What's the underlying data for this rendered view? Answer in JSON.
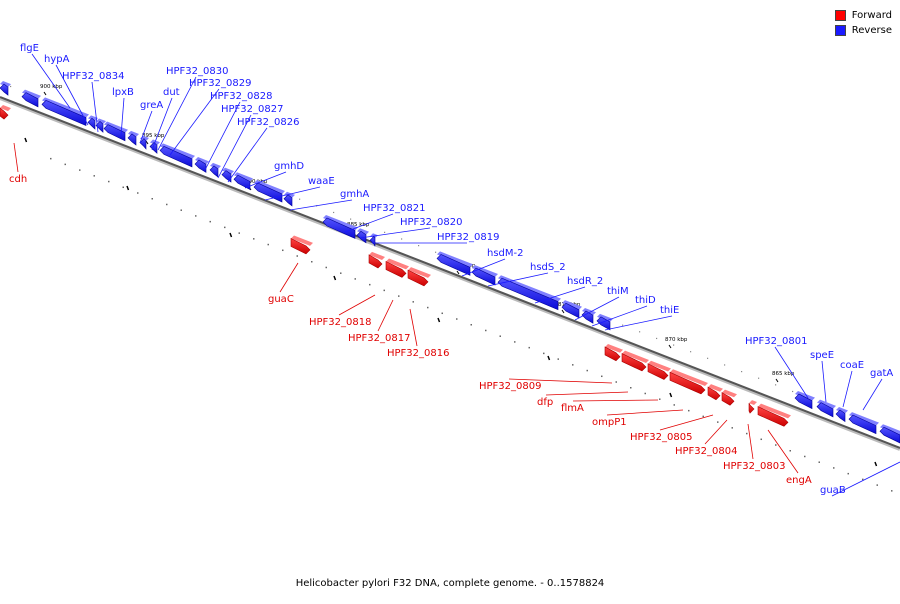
{
  "legend": {
    "forward_label": "Forward",
    "reverse_label": "Reverse",
    "forward_color": "#ff0000",
    "reverse_color": "#1a1aff"
  },
  "caption": "Helicobacter pylori F32 DNA, complete genome. - 0..1578824",
  "ticks": [
    "900 kbp",
    "895 kbp",
    "890 kbp",
    "885 kbp",
    "880 kbp",
    "875 kbp",
    "870 kbp",
    "865 kbp"
  ],
  "genes": [
    {
      "name": "flgE",
      "strand": "reverse"
    },
    {
      "name": "hypA",
      "strand": "reverse"
    },
    {
      "name": "HPF32_0834",
      "strand": "reverse"
    },
    {
      "name": "lpxB",
      "strand": "reverse"
    },
    {
      "name": "greA",
      "strand": "reverse"
    },
    {
      "name": "dut",
      "strand": "reverse"
    },
    {
      "name": "HPF32_0830",
      "strand": "reverse"
    },
    {
      "name": "HPF32_0829",
      "strand": "reverse"
    },
    {
      "name": "HPF32_0828",
      "strand": "reverse"
    },
    {
      "name": "HPF32_0827",
      "strand": "reverse"
    },
    {
      "name": "HPF32_0826",
      "strand": "reverse"
    },
    {
      "name": "gmhD",
      "strand": "reverse"
    },
    {
      "name": "waaE",
      "strand": "reverse"
    },
    {
      "name": "gmhA",
      "strand": "reverse"
    },
    {
      "name": "HPF32_0821",
      "strand": "reverse"
    },
    {
      "name": "HPF32_0820",
      "strand": "reverse"
    },
    {
      "name": "HPF32_0819",
      "strand": "reverse"
    },
    {
      "name": "hsdM-2",
      "strand": "reverse"
    },
    {
      "name": "hsdS_2",
      "strand": "reverse"
    },
    {
      "name": "hsdR_2",
      "strand": "reverse"
    },
    {
      "name": "thiM",
      "strand": "reverse"
    },
    {
      "name": "thiD",
      "strand": "reverse"
    },
    {
      "name": "thiE",
      "strand": "reverse"
    },
    {
      "name": "HPF32_0801",
      "strand": "reverse"
    },
    {
      "name": "speE",
      "strand": "reverse"
    },
    {
      "name": "coaE",
      "strand": "reverse"
    },
    {
      "name": "gatA",
      "strand": "reverse"
    },
    {
      "name": "guaB",
      "strand": "reverse"
    },
    {
      "name": "cdh",
      "strand": "forward"
    },
    {
      "name": "guaC",
      "strand": "forward"
    },
    {
      "name": "HPF32_0818",
      "strand": "forward"
    },
    {
      "name": "HPF32_0817",
      "strand": "forward"
    },
    {
      "name": "HPF32_0816",
      "strand": "forward"
    },
    {
      "name": "HPF32_0809",
      "strand": "forward"
    },
    {
      "name": "dfp",
      "strand": "forward"
    },
    {
      "name": "flmA",
      "strand": "forward"
    },
    {
      "name": "ompP1",
      "strand": "forward"
    },
    {
      "name": "HPF32_0805",
      "strand": "forward"
    },
    {
      "name": "HPF32_0804",
      "strand": "forward"
    },
    {
      "name": "HPF32_0803",
      "strand": "forward"
    },
    {
      "name": "engA",
      "strand": "forward"
    }
  ]
}
